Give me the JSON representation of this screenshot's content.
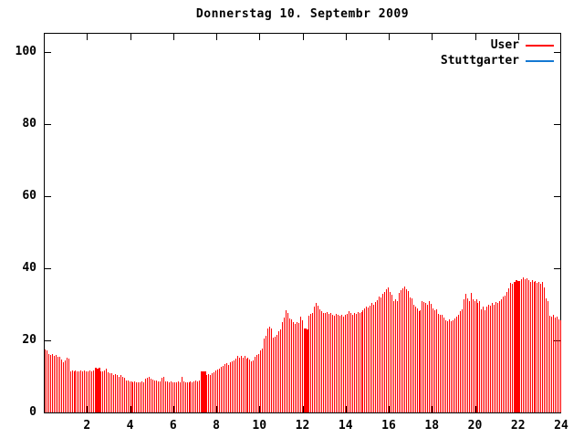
{
  "title": "Donnerstag 10. Septembr 2009",
  "legend": {
    "entries": [
      {
        "label": "User",
        "color": "#ff0000"
      },
      {
        "label": "Stuttgarter",
        "color": "#1478d2"
      }
    ],
    "position": "top-right"
  },
  "chart_data": {
    "type": "bar",
    "title": "Donnerstag 10. Septembr 2009",
    "xlabel": "",
    "ylabel": "",
    "x_unit": "hour of day",
    "sample_interval_minutes": 5,
    "xlim": [
      0,
      24
    ],
    "ylim": [
      0,
      105.6
    ],
    "x_ticks": [
      2,
      4,
      6,
      8,
      10,
      12,
      14,
      16,
      18,
      20,
      22,
      24
    ],
    "y_ticks": [
      0,
      20,
      40,
      60,
      80,
      100
    ],
    "grid": false,
    "legend_position": "top-right",
    "bar_color": "#ff0000",
    "solid_block_indices": [
      28,
      29,
      30,
      87,
      88,
      89,
      144,
      145,
      146,
      261,
      262,
      263
    ],
    "series": [
      {
        "name": "User",
        "color": "#ff0000",
        "values": [
          17.4,
          17.2,
          16.3,
          16.0,
          16.3,
          15.7,
          16.0,
          15.4,
          15.5,
          14.6,
          14.0,
          14.5,
          15.2,
          14.9,
          11.5,
          11.6,
          11.4,
          11.7,
          11.5,
          11.3,
          11.6,
          11.4,
          11.7,
          11.5,
          11.4,
          11.6,
          11.5,
          11.7,
          12.3,
          12.2,
          12.3,
          11.5,
          11.3,
          11.6,
          12.1,
          11.2,
          11.0,
          10.8,
          10.5,
          10.7,
          10.4,
          10.0,
          10.4,
          9.8,
          9.6,
          9.0,
          8.8,
          8.6,
          8.5,
          8.4,
          8.5,
          8.4,
          8.3,
          8.4,
          8.5,
          8.4,
          9.3,
          9.6,
          9.8,
          9.4,
          9.2,
          9.0,
          8.8,
          8.6,
          8.5,
          9.7,
          10.0,
          8.7,
          8.5,
          8.4,
          8.5,
          8.4,
          8.3,
          8.4,
          8.5,
          8.4,
          9.8,
          8.5,
          8.4,
          8.3,
          8.4,
          8.5,
          8.4,
          8.6,
          8.8,
          8.7,
          8.9,
          11.4,
          11.5,
          11.3,
          10.5,
          10.7,
          10.4,
          10.9,
          11.2,
          11.6,
          11.9,
          12.2,
          12.6,
          13.0,
          13.4,
          13.7,
          13.3,
          13.9,
          14.1,
          14.4,
          15.0,
          15.6,
          15.3,
          15.8,
          15.2,
          15.6,
          14.9,
          15.3,
          14.6,
          14.1,
          14.4,
          15.4,
          15.9,
          16.3,
          17.2,
          17.8,
          20.5,
          21.2,
          23.2,
          23.8,
          23.4,
          20.8,
          21.0,
          21.6,
          22.6,
          23.1,
          25.2,
          26.3,
          28.4,
          27.6,
          26.2,
          25.9,
          25.1,
          24.6,
          25.0,
          24.8,
          26.5,
          25.5,
          23.2,
          23.3,
          23.1,
          26.8,
          27.4,
          27.7,
          29.3,
          30.3,
          29.7,
          28.6,
          28.0,
          27.7,
          27.5,
          27.8,
          27.4,
          27.6,
          27.2,
          26.9,
          27.3,
          27.0,
          26.8,
          27.1,
          26.7,
          27.0,
          27.3,
          28.2,
          27.6,
          27.2,
          27.7,
          27.4,
          27.9,
          27.5,
          27.8,
          28.4,
          28.9,
          29.3,
          29.1,
          29.6,
          30.3,
          30.0,
          30.6,
          31.1,
          32.3,
          32.0,
          32.9,
          33.4,
          34.2,
          34.6,
          33.4,
          32.7,
          31.0,
          31.4,
          30.8,
          33.3,
          33.9,
          34.5,
          34.9,
          34.3,
          33.7,
          32.0,
          31.6,
          30.0,
          29.4,
          28.9,
          28.1,
          28.4,
          31.0,
          30.7,
          30.3,
          29.9,
          30.8,
          30.2,
          28.9,
          28.5,
          28.7,
          27.3,
          27.0,
          27.1,
          26.4,
          25.7,
          25.4,
          25.9,
          25.3,
          25.5,
          26.2,
          26.7,
          27.1,
          28.0,
          28.6,
          31.3,
          32.9,
          31.6,
          31.0,
          33.1,
          31.4,
          30.9,
          31.3,
          30.5,
          31.0,
          28.7,
          29.3,
          28.4,
          29.5,
          30.0,
          29.7,
          30.4,
          29.9,
          30.7,
          30.3,
          30.9,
          31.5,
          32.1,
          32.5,
          33.5,
          34.4,
          35.9,
          35.6,
          36.3,
          36.7,
          36.4,
          36.5,
          36.9,
          37.4,
          37.1,
          37.3,
          36.7,
          36.3,
          36.8,
          36.1,
          36.5,
          35.9,
          36.2,
          35.7,
          36.3,
          34.7,
          31.6,
          30.8,
          26.9,
          26.5,
          27.1,
          26.3,
          26.7,
          25.9,
          25.5
        ]
      },
      {
        "name": "Stuttgarter",
        "color": "#1478d2",
        "values": []
      }
    ]
  }
}
